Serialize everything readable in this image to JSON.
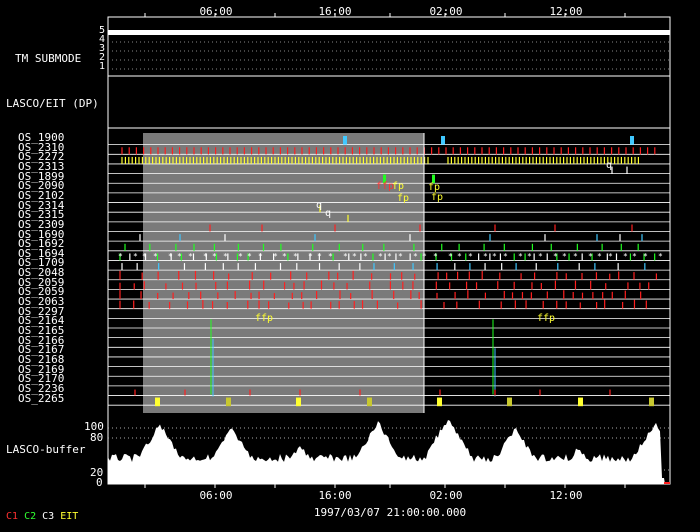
{
  "time_axis": {
    "ticks": [
      "06:00",
      "16:00",
      "02:00",
      "12:00"
    ],
    "footer_timestamp": "1997/03/07 21:00:00.000"
  },
  "tm_submode": {
    "label": "TM SUBMODE",
    "levels": [
      "5",
      "4",
      "3",
      "2",
      "1"
    ]
  },
  "lasco_eit_label": "LASCO/EIT (DP)",
  "os_rows": [
    "OS_1900",
    "OS_2310",
    "OS_2272",
    "OS_2313",
    "OS_1899",
    "OS_2090",
    "OS_2102",
    "OS_2314",
    "OS_2315",
    "OS_2309",
    "OS_1690",
    "OS_1692",
    "OS_1694",
    "OS_1709",
    "OS_2048",
    "OS_2059",
    "OS_2059",
    "OS_2063",
    "OS_2297",
    "OS_2164",
    "OS_2165",
    "OS_2166",
    "OS_2167",
    "OS_2168",
    "OS_2169",
    "OS_2170",
    "OS_2236",
    "OS_2265"
  ],
  "event_marks": {
    "ffp": "ffp",
    "fp": "fp",
    "q": "q",
    "star": "*"
  },
  "buffer": {
    "label": "LASCO-buffer",
    "ticks": [
      "100",
      "80",
      "20",
      "0"
    ]
  },
  "legend": [
    {
      "text": "C1",
      "color": "#ff3030"
    },
    {
      "text": "C2",
      "color": "#30ff30"
    },
    {
      "text": "C3",
      "color": "#ffffff"
    },
    {
      "text": "EIT",
      "color": "#ffff30"
    }
  ],
  "colors": {
    "shade": "#7a7a7a",
    "red": "#ff2020",
    "green": "#20ff20",
    "yellow": "#ffff30",
    "cyan": "#40c8ff",
    "white": "#ffffff"
  }
}
